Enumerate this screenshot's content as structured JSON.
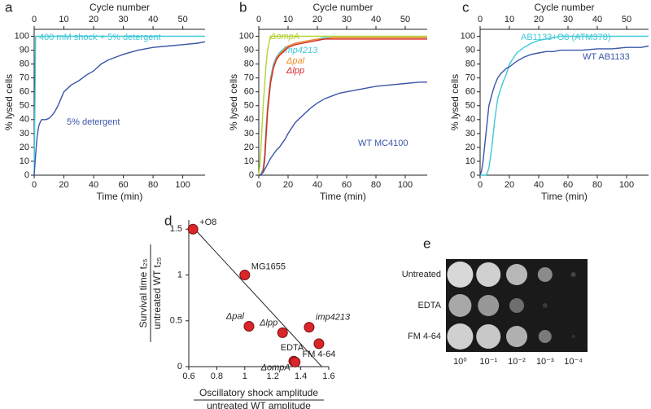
{
  "chart_data": [
    {
      "type": "step",
      "panel_label": "a",
      "xlabel": "Time (min)",
      "ylabel": "% lysed cells",
      "x2label": "Cycle number",
      "x": [
        0,
        1,
        2,
        3,
        4,
        5,
        6,
        8,
        10,
        12,
        14,
        16,
        18,
        20,
        25,
        30,
        35,
        40,
        45,
        50,
        55,
        60,
        70,
        80,
        90,
        100,
        110,
        115
      ],
      "xlim": [
        0,
        115
      ],
      "xticks": [
        0,
        20,
        40,
        60,
        80,
        100
      ],
      "x2lim": [
        0,
        57.5
      ],
      "x2ticks": [
        0,
        10,
        20,
        30,
        40,
        50
      ],
      "ylim": [
        0,
        105
      ],
      "yticks": [
        0,
        10,
        20,
        30,
        40,
        50,
        60,
        70,
        80,
        90,
        100
      ],
      "series": [
        {
          "name": "400 mM shock + 5% detergent",
          "color": "#3fc8d8",
          "values": [
            0,
            100,
            100,
            100,
            100,
            100,
            100,
            100,
            100,
            100,
            100,
            100,
            100,
            100,
            100,
            100,
            100,
            100,
            100,
            100,
            100,
            100,
            100,
            100,
            100,
            100,
            100,
            100
          ]
        },
        {
          "name": "5% detergent",
          "color": "#3a55a8",
          "values": [
            0,
            15,
            28,
            35,
            38,
            40,
            40,
            40,
            41,
            43,
            46,
            50,
            55,
            60,
            65,
            68,
            72,
            75,
            80,
            83,
            85,
            87,
            90,
            92,
            93,
            94,
            95,
            96
          ]
        }
      ]
    },
    {
      "type": "step",
      "panel_label": "b",
      "xlabel": "Time (min)",
      "ylabel": "% lysed cells",
      "x2label": "Cycle number",
      "x": [
        0,
        1,
        2,
        3,
        4,
        5,
        6,
        8,
        10,
        12,
        14,
        16,
        18,
        20,
        25,
        30,
        35,
        40,
        45,
        50,
        55,
        60,
        70,
        80,
        90,
        100,
        110,
        115
      ],
      "xlim": [
        0,
        115
      ],
      "xticks": [
        0,
        20,
        40,
        60,
        80,
        100
      ],
      "x2lim": [
        0,
        57.5
      ],
      "x2ticks": [
        0,
        10,
        20,
        30,
        40,
        50
      ],
      "ylim": [
        0,
        105
      ],
      "yticks": [
        0,
        10,
        20,
        30,
        40,
        50,
        60,
        70,
        80,
        90,
        100
      ],
      "series": [
        {
          "name": "ΔompA",
          "color": "#b5d334",
          "values": [
            0,
            10,
            30,
            50,
            65,
            80,
            90,
            100,
            100,
            100,
            100,
            100,
            100,
            100,
            100,
            100,
            100,
            100,
            100,
            100,
            100,
            100,
            100,
            100,
            100,
            100,
            100,
            100
          ]
        },
        {
          "name": "imp4213",
          "color": "#3fc8d8",
          "values": [
            0,
            0,
            2,
            5,
            15,
            35,
            50,
            70,
            80,
            85,
            88,
            90,
            92,
            93,
            95,
            96,
            97,
            98,
            99,
            99,
            99,
            99,
            99,
            99,
            99,
            99,
            99,
            99
          ]
        },
        {
          "name": "Δpal",
          "color": "#f08a24",
          "values": [
            0,
            0,
            1,
            4,
            12,
            30,
            48,
            68,
            78,
            84,
            87,
            89,
            91,
            93,
            95,
            96,
            97,
            98,
            98,
            99,
            99,
            99,
            99,
            99,
            99,
            99,
            99,
            99
          ]
        },
        {
          "name": "Δlpp",
          "color": "#d8262a",
          "values": [
            0,
            0,
            1,
            3,
            10,
            28,
            45,
            66,
            77,
            83,
            86,
            88,
            90,
            92,
            94,
            95,
            96,
            97,
            98,
            98,
            98,
            98,
            98,
            98,
            98,
            98,
            98,
            98
          ]
        },
        {
          "name": "WT MC4100",
          "color": "#3a55a8",
          "values": [
            0,
            0,
            1,
            2,
            4,
            6,
            8,
            12,
            15,
            18,
            20,
            23,
            26,
            30,
            38,
            43,
            48,
            52,
            55,
            57,
            59,
            60,
            62,
            64,
            65,
            66,
            67,
            67
          ]
        }
      ]
    },
    {
      "type": "step",
      "panel_label": "c",
      "xlabel": "Time (min)",
      "ylabel": "% lysed cells",
      "x2label": "Cycle number",
      "x": [
        0,
        1,
        2,
        3,
        4,
        5,
        6,
        8,
        10,
        12,
        14,
        16,
        18,
        20,
        25,
        30,
        35,
        40,
        45,
        50,
        55,
        60,
        70,
        80,
        90,
        100,
        110,
        115
      ],
      "xlim": [
        0,
        115
      ],
      "xticks": [
        0,
        20,
        40,
        60,
        80,
        100
      ],
      "x2lim": [
        0,
        57.5
      ],
      "x2ticks": [
        0,
        10,
        20,
        30,
        40,
        50
      ],
      "ylim": [
        0,
        105
      ],
      "yticks": [
        0,
        10,
        20,
        30,
        40,
        50,
        60,
        70,
        80,
        90,
        100
      ],
      "series": [
        {
          "name": "AB1133+O8 (ATM378)",
          "color": "#3fc8d8",
          "values": [
            0,
            0,
            0,
            0,
            0,
            2,
            5,
            20,
            40,
            55,
            62,
            68,
            73,
            80,
            88,
            92,
            95,
            97,
            98,
            99,
            100,
            100,
            100,
            100,
            100,
            100,
            100,
            100
          ]
        },
        {
          "name": "WT AB1133",
          "color": "#3a55a8",
          "values": [
            0,
            3,
            10,
            20,
            30,
            40,
            50,
            58,
            65,
            70,
            73,
            75,
            77,
            78,
            82,
            85,
            87,
            88,
            89,
            89,
            90,
            90,
            90,
            91,
            91,
            92,
            92,
            93
          ]
        }
      ]
    },
    {
      "type": "scatter",
      "panel_label": "d",
      "xlabel": "Oscillatory shock amplitude",
      "xlabel_denominator": "untreated WT amplitude",
      "ylabel": "Survival time t₂₅",
      "ylabel_denominator": "untreated WT t₂₅",
      "xlim": [
        0.6,
        1.6
      ],
      "xticks": [
        0.6,
        0.8,
        1,
        1.2,
        1.4,
        1.6
      ],
      "ylim": [
        0,
        1.6
      ],
      "yticks": [
        0,
        0.5,
        1,
        1.5
      ],
      "color": "#d8262a",
      "labels": [
        "+O8",
        "MG1655",
        "Δpal",
        "Δlpp",
        "imp4213",
        "FM 4-64",
        "EDTA",
        "ΔompA"
      ],
      "x": [
        0.63,
        1.0,
        1.03,
        1.27,
        1.46,
        1.53,
        1.35,
        1.36
      ],
      "values": [
        1.5,
        1.0,
        0.44,
        0.37,
        0.43,
        0.25,
        0.06,
        0.05
      ],
      "trend_line": {
        "x": [
          0.63,
          1.55
        ],
        "values": [
          1.52,
          0
        ]
      }
    },
    {
      "type": "spot-assay",
      "panel_label": "e",
      "rows": [
        "Untreated",
        "EDTA",
        "FM 4-64"
      ],
      "columns": [
        "10⁰",
        "10⁻¹",
        "10⁻²",
        "10⁻³",
        "10⁻⁴"
      ]
    }
  ]
}
